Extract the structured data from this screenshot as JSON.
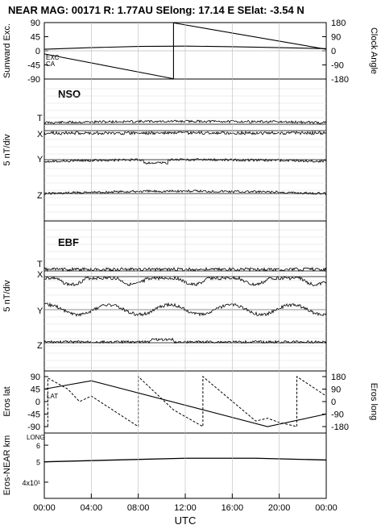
{
  "header": {
    "title": "NEAR MAG: 00171  R: 1.77AU  SElong:   17.14 E  SElat:   -3.54 N"
  },
  "chart_data": [
    {
      "type": "line",
      "panel": "sunward-exc-clock-angle",
      "left_axis": {
        "label": "Sunward Exc.",
        "ticks": [
          "90",
          "45",
          "0",
          "-45",
          "-90"
        ],
        "ylim": [
          -90,
          90
        ]
      },
      "right_axis": {
        "label": "Clock Angle",
        "ticks": [
          "180",
          "90",
          "0",
          "-90",
          "-180"
        ],
        "ylim": [
          -180,
          180
        ]
      },
      "inline_labels": {
        "exc": "EXC",
        "ca": "CA"
      },
      "series": [
        {
          "name": "EXC",
          "axis": "left",
          "x": [
            0,
            4,
            8,
            12,
            16,
            20,
            24
          ],
          "values": [
            5,
            10,
            14,
            15,
            13,
            10,
            7
          ]
        },
        {
          "name": "CA",
          "axis": "right",
          "x": [
            0,
            11,
            11,
            24
          ],
          "values": [
            -20,
            -178,
            178,
            10
          ]
        }
      ]
    },
    {
      "type": "line",
      "panel": "nso",
      "panel_label": "NSO",
      "ylabel": "5 nT/div",
      "series_labels": [
        "T",
        "X",
        "Y",
        "Z"
      ]
    },
    {
      "type": "line",
      "panel": "ebf",
      "panel_label": "EBF",
      "ylabel": "5 nT/div",
      "series_labels": [
        "T",
        "X",
        "Y",
        "Z"
      ]
    },
    {
      "type": "line",
      "panel": "eros-lat-long",
      "left_axis": {
        "label": "Eros lat",
        "ticks": [
          "90",
          "45",
          "0",
          "-45",
          "-90"
        ],
        "ylim": [
          -90,
          90
        ]
      },
      "right_axis": {
        "label": "Eros long",
        "ticks": [
          "180",
          "90",
          "0",
          "-90",
          "-180"
        ],
        "ylim": [
          -180,
          180
        ]
      },
      "inline_labels": {
        "lat": "LAT",
        "long": "LONG"
      },
      "series": [
        {
          "name": "LAT",
          "axis": "left",
          "x": [
            0,
            4,
            19,
            24
          ],
          "values": [
            45,
            75,
            -90,
            -45
          ]
        },
        {
          "name": "LONG",
          "axis": "right",
          "x": [
            0,
            0.3,
            0.3,
            2,
            3,
            4,
            8,
            8,
            11,
            13.5,
            13.5,
            18,
            19,
            20,
            21.5,
            21.5,
            24
          ],
          "values": [
            -180,
            -180,
            170,
            90,
            0,
            40,
            -180,
            180,
            -60,
            -180,
            180,
            -140,
            -120,
            -150,
            -180,
            180,
            40
          ]
        }
      ]
    },
    {
      "type": "line",
      "panel": "eros-near-km",
      "left_axis": {
        "label": "Eros-NEAR km",
        "ticks": [
          "6",
          "5",
          "4x10¹"
        ],
        "scale": "log"
      },
      "series": [
        {
          "name": "range",
          "x": [
            0,
            6,
            12,
            18,
            24
          ],
          "values": [
            50,
            51,
            52,
            52,
            51
          ]
        }
      ]
    }
  ],
  "x_axis": {
    "label": "UTC",
    "ticks": [
      "00:00",
      "04:00",
      "08:00",
      "12:00",
      "16:00",
      "20:00",
      "00:00"
    ],
    "xlim": [
      0,
      24
    ]
  }
}
